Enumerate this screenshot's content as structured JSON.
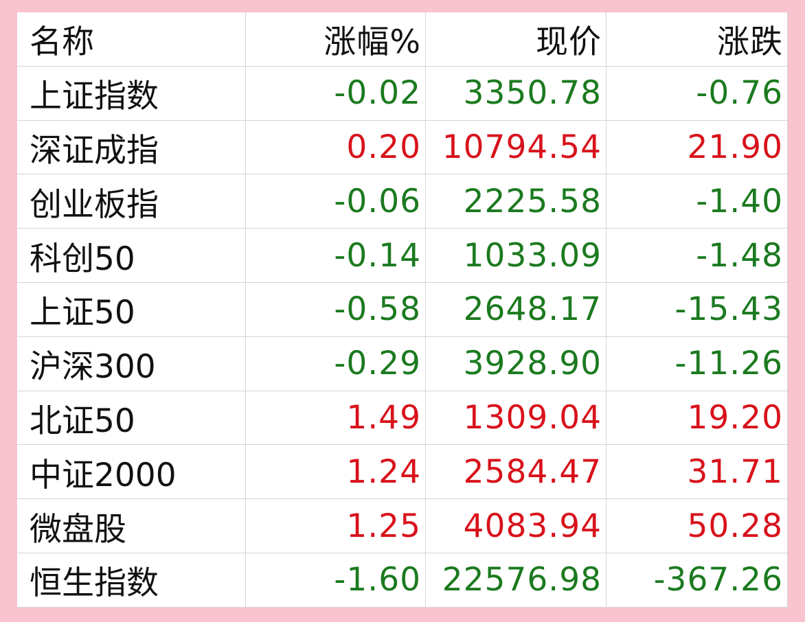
{
  "table": {
    "header": [
      "名称",
      "涨幅%",
      "现价",
      "涨跌"
    ],
    "rows": [
      [
        "上证指数",
        "-0.02",
        "3350.78",
        "-0.76"
      ],
      [
        "深证成指",
        "0.20",
        "10794.54",
        "21.90"
      ],
      [
        "创业板指",
        "-0.06",
        "2225.58",
        "-1.40"
      ],
      [
        "科创50",
        "-0.14",
        "1033.09",
        "-1.48"
      ],
      [
        "上证50",
        "-0.58",
        "2648.17",
        "-15.43"
      ],
      [
        "沪深300",
        "-0.29",
        "3928.90",
        "-11.26"
      ],
      [
        "北证50",
        "1.49",
        "1309.04",
        "19.20"
      ],
      [
        "中证2000",
        "1.24",
        "2584.47",
        "31.71"
      ],
      [
        "微盘股",
        "1.25",
        "4083.94",
        "50.28"
      ],
      [
        "恒生指数",
        "-1.60",
        "22576.98",
        "-367.26"
      ]
    ]
  }
}
